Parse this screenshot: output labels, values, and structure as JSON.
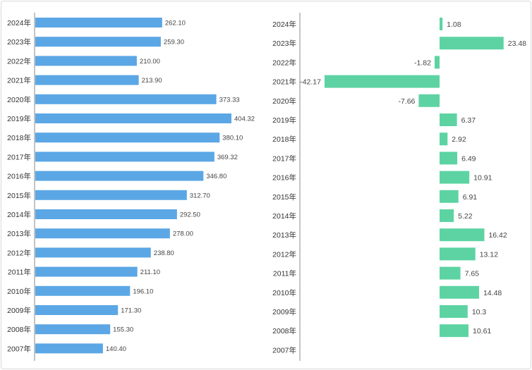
{
  "chart_data": [
    {
      "type": "bar",
      "orientation": "horizontal",
      "categories": [
        "2024年",
        "2023年",
        "2022年",
        "2021年",
        "2020年",
        "2019年",
        "2018年",
        "2017年",
        "2016年",
        "2015年",
        "2014年",
        "2013年",
        "2012年",
        "2011年",
        "2010年",
        "2009年",
        "2008年",
        "2007年"
      ],
      "values": [
        262.1,
        259.3,
        210.0,
        213.9,
        373.33,
        404.32,
        380.1,
        369.32,
        346.8,
        312.7,
        292.5,
        278.0,
        238.8,
        211.1,
        196.1,
        171.3,
        155.3,
        140.4
      ],
      "labels": [
        "262.10",
        "259.30",
        "210.00",
        "213.90",
        "373.33",
        "404.32",
        "380.10",
        "369.32",
        "346.80",
        "312.70",
        "292.50",
        "278.00",
        "238.80",
        "211.10",
        "196.10",
        "171.30",
        "155.30",
        "140.40"
      ],
      "xlim": [
        0,
        500
      ],
      "color": "#5ba7e5",
      "grid": false,
      "title": "",
      "xlabel": "",
      "ylabel": ""
    },
    {
      "type": "bar",
      "orientation": "horizontal",
      "categories": [
        "2024年",
        "2023年",
        "2022年",
        "2021年",
        "2020年",
        "2019年",
        "2018年",
        "2017年",
        "2016年",
        "2015年",
        "2014年",
        "2013年",
        "2012年",
        "2011年",
        "2010年",
        "2009年",
        "2008年",
        "2007年"
      ],
      "values": [
        1.08,
        23.48,
        -1.82,
        -42.17,
        -7.66,
        6.37,
        2.92,
        6.49,
        10.91,
        6.91,
        5.22,
        16.42,
        13.12,
        7.65,
        14.48,
        10.3,
        10.61,
        null
      ],
      "labels": [
        "1.08",
        "23.48",
        "-1.82",
        "-42.17",
        "-7.66",
        "6.37",
        "2.92",
        "6.49",
        "10.91",
        "6.91",
        "5.22",
        "16.42",
        "13.12",
        "7.65",
        "14.48",
        "10.3",
        "10.61",
        ""
      ],
      "xlim": [
        -45,
        25
      ],
      "color": "#5dd3a3",
      "grid": false,
      "title": "",
      "xlabel": "",
      "ylabel": ""
    }
  ]
}
